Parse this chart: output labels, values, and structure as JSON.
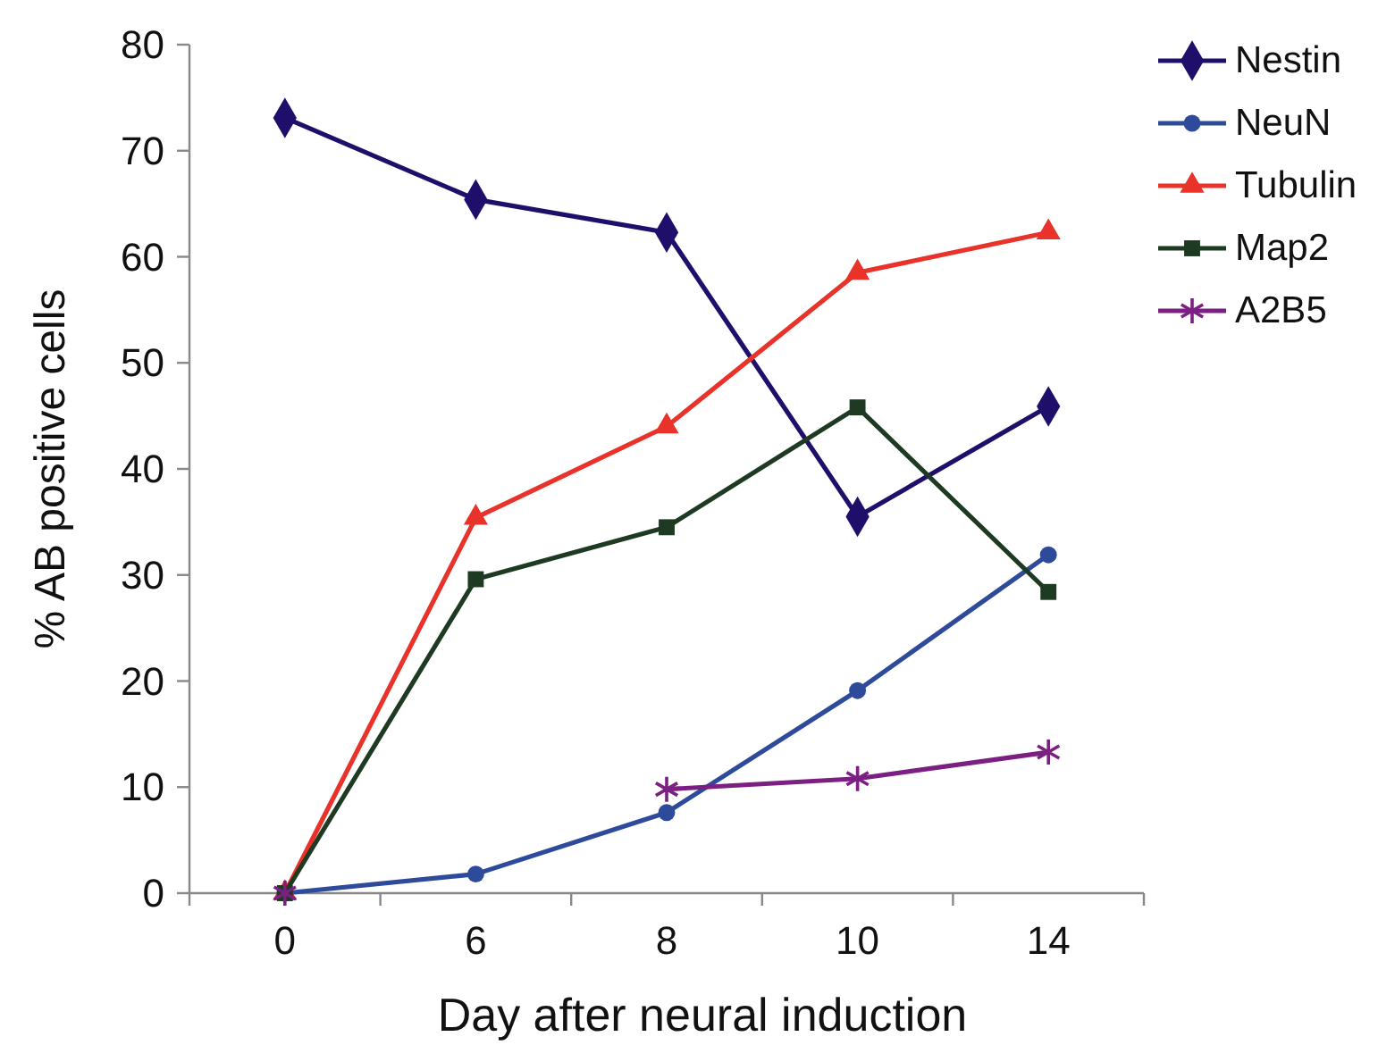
{
  "chart_data": {
    "type": "line",
    "xlabel": "Day after neural induction",
    "ylabel": "% AB positive cells",
    "categories": [
      "0",
      "6",
      "8",
      "10",
      "14"
    ],
    "ylim": [
      0,
      80
    ],
    "yticks": [
      0,
      10,
      20,
      30,
      40,
      50,
      60,
      70,
      80
    ],
    "grid": false,
    "legend": "top right",
    "series": [
      {
        "name": "Nestin",
        "color": "#1f0f6b",
        "marker": "diamond",
        "values": [
          73.1,
          65.4,
          62.3,
          35.5,
          45.9
        ]
      },
      {
        "name": "NeuN",
        "color": "#2e4a9a",
        "marker": "circle",
        "values": [
          0,
          1.8,
          7.6,
          19.1,
          31.9
        ]
      },
      {
        "name": "Tubulin",
        "color": "#e8322a",
        "marker": "triangle",
        "values": [
          0,
          35.4,
          44.0,
          58.5,
          62.3
        ]
      },
      {
        "name": "Map2",
        "color": "#1e3a22",
        "marker": "square",
        "values": [
          0,
          29.6,
          34.5,
          45.8,
          28.4
        ]
      },
      {
        "name": "A2B5",
        "color": "#7b1f82",
        "marker": "cross",
        "values": [
          0,
          null,
          9.8,
          10.8,
          13.3
        ]
      }
    ]
  }
}
